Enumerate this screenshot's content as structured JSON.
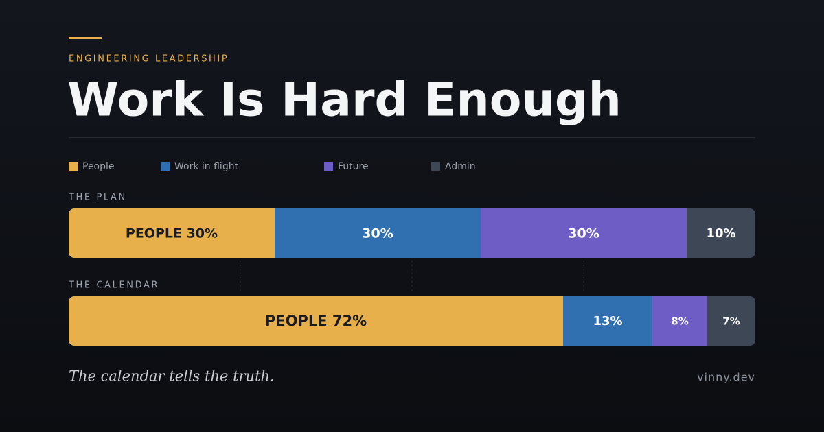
{
  "chart_data": {
    "type": "bar",
    "orientation": "horizontal",
    "stacked": true,
    "kicker": "ENGINEERING LEADERSHIP",
    "title": "Work Is Hard Enough",
    "categories": [
      "THE PLAN",
      "THE CALENDAR"
    ],
    "series": [
      {
        "name": "People",
        "color": "#e8b04a",
        "label_color": "#1b1b1b",
        "values": [
          30,
          72
        ],
        "value_labels": [
          "PEOPLE 30%",
          "PEOPLE 72%"
        ]
      },
      {
        "name": "Work in flight",
        "color": "#3170b0",
        "label_color": "#ffffff",
        "values": [
          30,
          13
        ],
        "value_labels": [
          "30%",
          "13%"
        ]
      },
      {
        "name": "Future",
        "color": "#6e5dc4",
        "label_color": "#ffffff",
        "values": [
          30,
          8
        ],
        "value_labels": [
          "30%",
          "8%"
        ]
      },
      {
        "name": "Admin",
        "color": "#3e4756",
        "label_color": "#ffffff",
        "values": [
          10,
          7
        ],
        "value_labels": [
          "10%",
          "7%"
        ]
      }
    ],
    "xlim": [
      0,
      100
    ],
    "xticks": [
      25,
      50,
      75
    ],
    "grid": true,
    "caption": "The calendar tells the truth.",
    "credit": "vinny.dev"
  }
}
